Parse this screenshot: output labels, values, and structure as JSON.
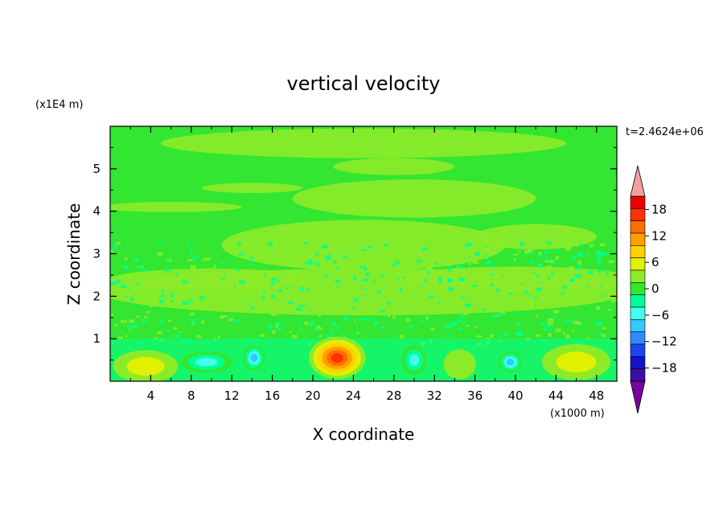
{
  "chart_data": {
    "type": "heatmap",
    "title": "vertical velocity",
    "xlabel": "X coordinate",
    "ylabel": "Z coordinate",
    "x_unit": "(x1000 m)",
    "y_unit": "(x1E4 m)",
    "time_label": "t=2.4624e+06",
    "x_ticks": [
      4,
      8,
      12,
      16,
      20,
      24,
      28,
      32,
      36,
      40,
      44,
      48
    ],
    "y_ticks": [
      1,
      2,
      3,
      4,
      5
    ],
    "xlim": [
      0,
      50
    ],
    "ylim": [
      0,
      6
    ],
    "colorbar": {
      "tick_values": [
        18,
        12,
        6,
        0,
        -6,
        -12,
        -18
      ],
      "tick_labels": [
        "18",
        "12",
        "6",
        "0",
        "−6",
        "−12",
        "−18"
      ],
      "range": [
        -21,
        21
      ],
      "colors": [
        "#7a00a0",
        "#3c0fa0",
        "#1414c8",
        "#1e46f0",
        "#2d8cff",
        "#33c8ff",
        "#44ffee",
        "#00ff96",
        "#32e632",
        "#8ceb28",
        "#e0f000",
        "#ffd200",
        "#ffa000",
        "#ff6e00",
        "#ff3200",
        "#eb0000",
        "#f5a0a0"
      ]
    },
    "background_value": 0,
    "features": [
      {
        "name": "strong-updraft",
        "x": 22.4,
        "z": 0.55,
        "rx": 2.8,
        "rz": 0.5,
        "peak": 17
      },
      {
        "name": "updraft-left",
        "x": 3.5,
        "z": 0.35,
        "rx": 3.2,
        "rz": 0.38,
        "peak": 7
      },
      {
        "name": "updraft-right",
        "x": 46,
        "z": 0.45,
        "rx": 3.4,
        "rz": 0.42,
        "peak": 6
      },
      {
        "name": "updraft-mid",
        "x": 34.5,
        "z": 0.4,
        "rx": 1.6,
        "rz": 0.35,
        "peak": 4
      },
      {
        "name": "downdraft-1",
        "x": 9.5,
        "z": 0.45,
        "rx": 2.6,
        "rz": 0.25,
        "peak": -10
      },
      {
        "name": "downdraft-2",
        "x": 14.2,
        "z": 0.55,
        "rx": 1.1,
        "rz": 0.3,
        "peak": -11
      },
      {
        "name": "downdraft-3",
        "x": 30,
        "z": 0.5,
        "rx": 1.2,
        "rz": 0.35,
        "peak": -10
      },
      {
        "name": "downdraft-4",
        "x": 39.5,
        "z": 0.45,
        "rx": 1.2,
        "rz": 0.25,
        "peak": -11
      }
    ]
  }
}
